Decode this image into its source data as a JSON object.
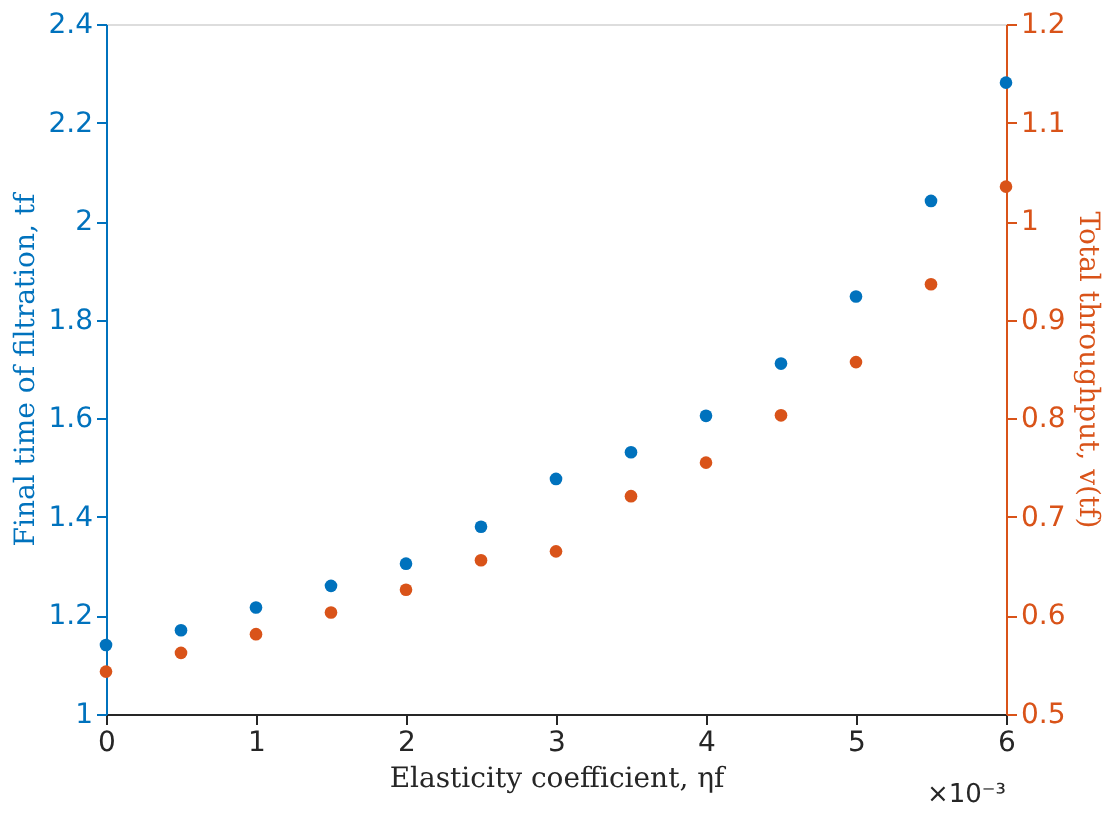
{
  "chart_data": {
    "type": "scatter",
    "xlabel": "Elasticity coefficient, ηf",
    "ylabel": "Final time of filtration, tf",
    "y2label": "Total throughput, v(tf)",
    "x": [
      0,
      0.5,
      1,
      1.5,
      2,
      2.5,
      3,
      3.5,
      4,
      4.5,
      5,
      5.5,
      6
    ],
    "series": [
      {
        "color": "#0072bd",
        "axis": "y",
        "values": [
          1.14,
          1.17,
          1.216,
          1.26,
          1.305,
          1.38,
          1.477,
          1.531,
          1.605,
          1.711,
          1.847,
          2.041,
          2.281
        ]
      },
      {
        "color": "#d95319",
        "axis": "y2",
        "values": [
          0.543,
          0.562,
          0.581,
          0.603,
          0.626,
          0.656,
          0.665,
          0.721,
          0.755,
          0.803,
          0.857,
          0.936,
          1.035
        ]
      }
    ],
    "xlim": [
      0,
      6
    ],
    "xticks": [
      0,
      1,
      2,
      3,
      4,
      5,
      6
    ],
    "ylim": [
      1,
      2.4
    ],
    "yticks": [
      1,
      1.2,
      1.4,
      1.6,
      1.8,
      2,
      2.2,
      2.4
    ],
    "y2lim": [
      0.5,
      1.2
    ],
    "y2ticks": [
      0.5,
      0.6,
      0.7,
      0.8,
      0.9,
      1,
      1.1,
      1.2
    ],
    "annotations": [
      "×10⁻³"
    ],
    "marker": "circle",
    "grid": false
  }
}
